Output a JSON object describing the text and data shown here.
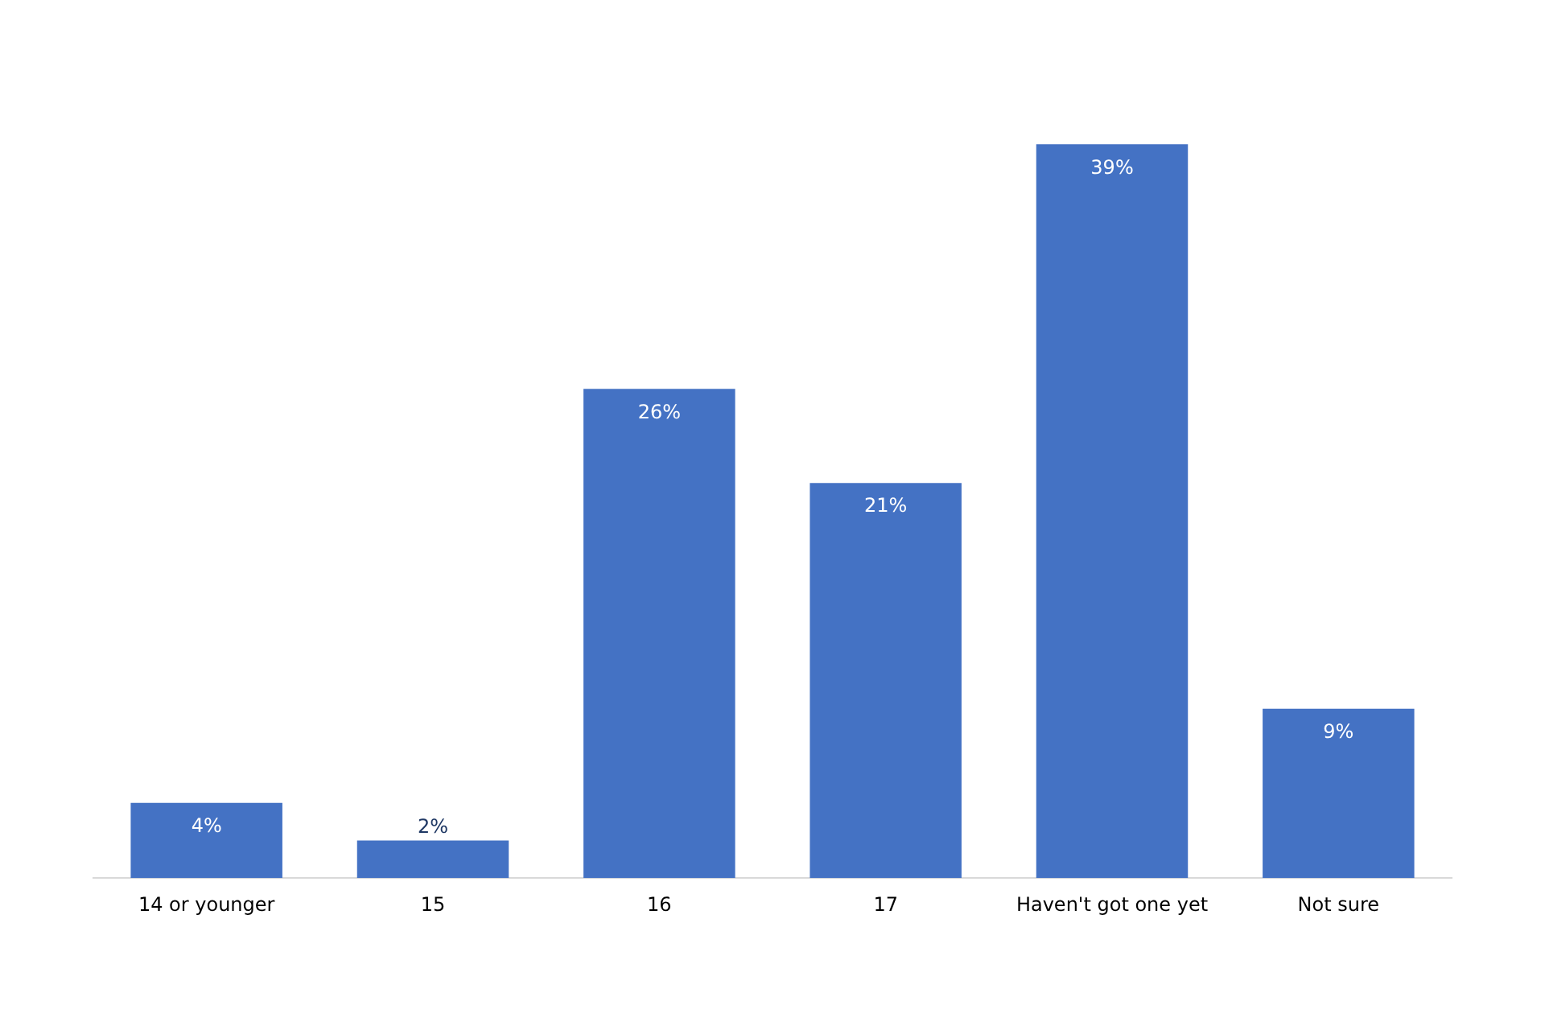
{
  "chart_data": {
    "type": "bar",
    "categories": [
      "14 or younger",
      "15",
      "16",
      "17",
      "Haven't got one yet",
      "Not sure"
    ],
    "values": [
      4,
      2,
      26,
      21,
      39,
      9
    ],
    "value_labels": [
      "4%",
      "2%",
      "26%",
      "21%",
      "39%",
      "9%"
    ],
    "color": "#4472c4"
  }
}
